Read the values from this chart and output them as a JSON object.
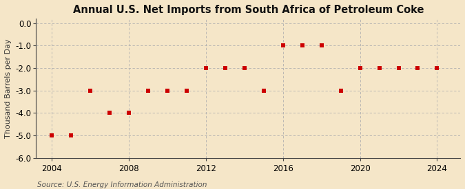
{
  "title": "Annual U.S. Net Imports from South Africa of Petroleum Coke",
  "ylabel": "Thousand Barrels per Day",
  "source": "Source: U.S. Energy Information Administration",
  "years": [
    2004,
    2005,
    2006,
    2007,
    2008,
    2009,
    2010,
    2011,
    2012,
    2013,
    2014,
    2015,
    2016,
    2017,
    2018,
    2019,
    2020,
    2021,
    2022,
    2023,
    2024
  ],
  "values": [
    -5,
    -5,
    -3,
    -4,
    -4,
    -3,
    -3,
    -3,
    -2,
    -2,
    -2,
    -3,
    -1,
    -1,
    -1,
    -3,
    -2,
    -2,
    -2,
    -2,
    -2
  ],
  "marker_color": "#cc0000",
  "marker_size": 4,
  "background_color": "#f5e6c8",
  "dashed_color": "#b0b0b0",
  "spine_color": "#444444",
  "ylim": [
    -6.0,
    0.2
  ],
  "xlim": [
    2003.2,
    2025.2
  ],
  "yticks": [
    0.0,
    -1.0,
    -2.0,
    -3.0,
    -4.0,
    -5.0,
    -6.0
  ],
  "xticks": [
    2004,
    2008,
    2012,
    2016,
    2020,
    2024
  ],
  "title_fontsize": 10.5,
  "axis_fontsize": 8.5,
  "source_fontsize": 7.5,
  "ylabel_fontsize": 8.0
}
